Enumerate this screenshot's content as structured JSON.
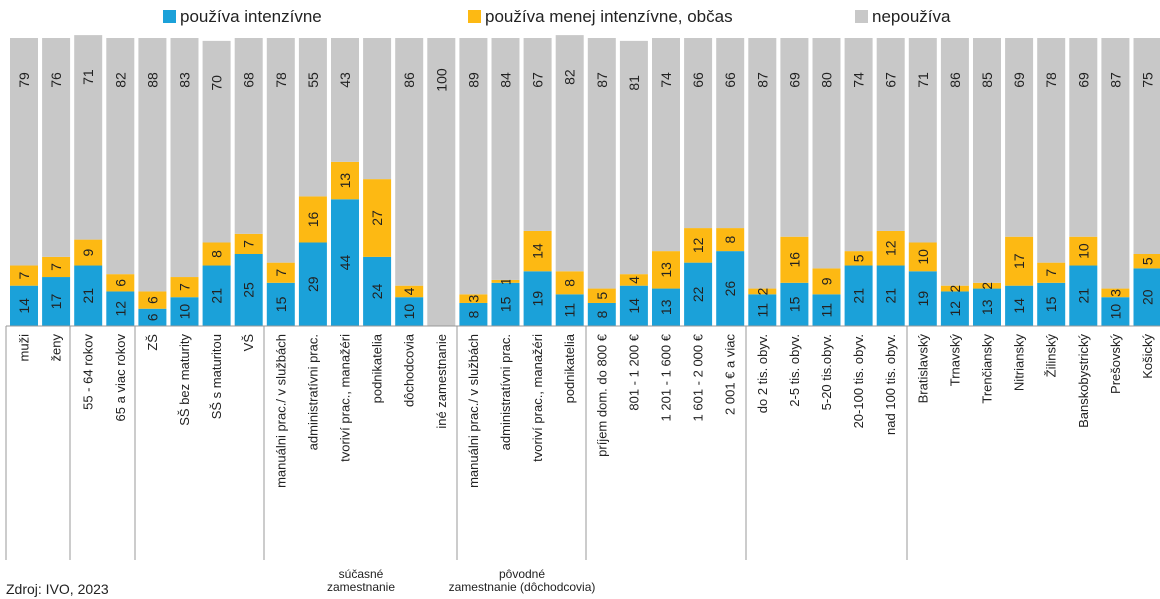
{
  "chart_data": {
    "type": "stacked_bar",
    "categories": [
      "muži",
      "ženy",
      "55 - 64 rokov",
      "65 a viac rokov",
      "ZŠ",
      "SŠ bez maturity",
      "SŠ s maturitou",
      "VŠ",
      "manuálni prac./ v službách",
      "administratívni prac.",
      "tvoriví prac., manažéri",
      "podnikatelia",
      "dôchodcovia",
      "iné zamestnanie",
      "manuálni prac./ v službách",
      "administratívni prac.",
      "tvoriví prac., manažéri",
      "podnikatelia",
      "príjem dom. do 800 €",
      "801 - 1 200 €",
      "1 201 - 1 600 €",
      "1 601 - 2 000 €",
      "2 001 € a viac",
      "do 2 tis. obyv.",
      "2-5 tis. obyv.",
      "5-20 tis.obyv.",
      "20-100 tis. obyv.",
      "nad 100 tis. obyv.",
      "Bratislavský",
      "Trnavský",
      "Trenčiansky",
      "Nitriansky",
      "Žilinský",
      "Banskobystrický",
      "Prešovský",
      "Košický"
    ],
    "series": [
      {
        "name": "používa intenzívne",
        "color": "#1ba1d9",
        "values": [
          14,
          17,
          21,
          12,
          6,
          10,
          21,
          25,
          15,
          29,
          44,
          24,
          10,
          0,
          8,
          15,
          19,
          11,
          8,
          14,
          13,
          22,
          26,
          11,
          15,
          11,
          21,
          21,
          19,
          12,
          13,
          14,
          15,
          21,
          10,
          20
        ]
      },
      {
        "name": "používa menej intenzívne, občas",
        "color": "#fdb913",
        "values": [
          7,
          7,
          9,
          6,
          6,
          7,
          8,
          7,
          7,
          16,
          13,
          27,
          4,
          0,
          3,
          1,
          14,
          8,
          5,
          4,
          13,
          12,
          8,
          2,
          16,
          9,
          5,
          12,
          10,
          2,
          2,
          17,
          7,
          10,
          3,
          5
        ]
      },
      {
        "name": "nepoužíva",
        "color": "#c8c8c8",
        "values": [
          79,
          76,
          71,
          82,
          88,
          83,
          70,
          68,
          78,
          55,
          43,
          49,
          86,
          100,
          89,
          84,
          67,
          82,
          87,
          81,
          74,
          66,
          66,
          87,
          69,
          80,
          74,
          67,
          71,
          86,
          85,
          69,
          78,
          69,
          87,
          75
        ],
        "value_labels": [
          "79",
          "76",
          "71",
          "82",
          "88",
          "83",
          "70",
          "68",
          "78",
          "55",
          "43",
          null,
          "86",
          "100",
          "89",
          "84",
          "67",
          "82",
          "87",
          "81",
          "74",
          "66",
          "66",
          "87",
          "69",
          "80",
          "74",
          "67",
          "71",
          "86",
          "85",
          "69",
          "78",
          "69",
          "87",
          "75"
        ]
      }
    ],
    "ylim": [
      0,
      100
    ],
    "groups": [
      {
        "lines": [
          "súčasné",
          "zamestnanie"
        ]
      },
      {
        "lines": [
          "pôvodné",
          "zamestnanie (dôchodcovia)"
        ]
      }
    ],
    "source": "Zdroj: IVO, 2023"
  }
}
